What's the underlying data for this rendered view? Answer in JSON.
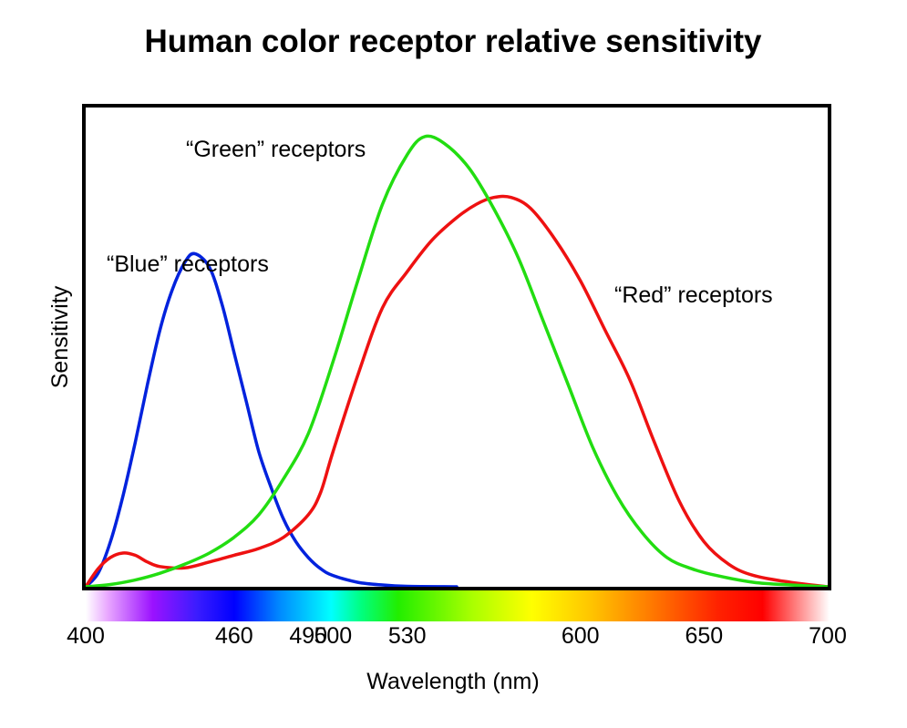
{
  "chart_data": {
    "type": "line",
    "title": "Human color receptor relative sensitivity",
    "xlabel": "Wavelength (nm)",
    "ylabel": "Sensitivity",
    "xlim": [
      400,
      700
    ],
    "ylim": [
      0,
      1.0
    ],
    "x_ticks": [
      "400",
      "460",
      "490",
      "500",
      "530",
      "600",
      "650",
      "700"
    ],
    "grid": false,
    "legend": "none",
    "series": [
      {
        "name": "“Blue” receptors",
        "color": "#0022dd",
        "points": [
          [
            400,
            0
          ],
          [
            405,
            0.03
          ],
          [
            410,
            0.1
          ],
          [
            415,
            0.2
          ],
          [
            420,
            0.32
          ],
          [
            425,
            0.45
          ],
          [
            430,
            0.57
          ],
          [
            435,
            0.66
          ],
          [
            440,
            0.72
          ],
          [
            444,
            0.74
          ],
          [
            450,
            0.71
          ],
          [
            455,
            0.63
          ],
          [
            460,
            0.52
          ],
          [
            465,
            0.41
          ],
          [
            470,
            0.3
          ],
          [
            475,
            0.22
          ],
          [
            480,
            0.15
          ],
          [
            485,
            0.1
          ],
          [
            490,
            0.065
          ],
          [
            495,
            0.04
          ],
          [
            500,
            0.025
          ],
          [
            510,
            0.01
          ],
          [
            520,
            0.004
          ],
          [
            530,
            0.001
          ],
          [
            550,
            0
          ]
        ]
      },
      {
        "name": "“Green” receptors",
        "color": "#22dd11",
        "points": [
          [
            400,
            0
          ],
          [
            410,
            0.005
          ],
          [
            420,
            0.015
          ],
          [
            430,
            0.03
          ],
          [
            440,
            0.05
          ],
          [
            450,
            0.075
          ],
          [
            460,
            0.11
          ],
          [
            470,
            0.16
          ],
          [
            480,
            0.24
          ],
          [
            490,
            0.34
          ],
          [
            500,
            0.5
          ],
          [
            510,
            0.68
          ],
          [
            520,
            0.85
          ],
          [
            530,
            0.96
          ],
          [
            537,
            1.0
          ],
          [
            545,
            0.985
          ],
          [
            555,
            0.93
          ],
          [
            565,
            0.84
          ],
          [
            575,
            0.73
          ],
          [
            585,
            0.59
          ],
          [
            595,
            0.45
          ],
          [
            605,
            0.31
          ],
          [
            615,
            0.2
          ],
          [
            625,
            0.12
          ],
          [
            635,
            0.065
          ],
          [
            645,
            0.04
          ],
          [
            655,
            0.025
          ],
          [
            670,
            0.01
          ],
          [
            685,
            0.004
          ],
          [
            700,
            0
          ]
        ]
      },
      {
        "name": "“Red” receptors",
        "color": "#ee1111",
        "points": [
          [
            400,
            0
          ],
          [
            405,
            0.04
          ],
          [
            410,
            0.065
          ],
          [
            415,
            0.075
          ],
          [
            420,
            0.07
          ],
          [
            425,
            0.055
          ],
          [
            430,
            0.045
          ],
          [
            440,
            0.042
          ],
          [
            450,
            0.055
          ],
          [
            460,
            0.07
          ],
          [
            470,
            0.085
          ],
          [
            480,
            0.11
          ],
          [
            490,
            0.16
          ],
          [
            495,
            0.21
          ],
          [
            500,
            0.3
          ],
          [
            510,
            0.47
          ],
          [
            520,
            0.62
          ],
          [
            530,
            0.7
          ],
          [
            540,
            0.77
          ],
          [
            550,
            0.82
          ],
          [
            558,
            0.85
          ],
          [
            565,
            0.865
          ],
          [
            572,
            0.865
          ],
          [
            580,
            0.84
          ],
          [
            590,
            0.77
          ],
          [
            600,
            0.68
          ],
          [
            610,
            0.57
          ],
          [
            620,
            0.46
          ],
          [
            630,
            0.32
          ],
          [
            640,
            0.19
          ],
          [
            650,
            0.1
          ],
          [
            660,
            0.05
          ],
          [
            670,
            0.025
          ],
          [
            685,
            0.01
          ],
          [
            700,
            0
          ]
        ]
      }
    ],
    "annotations": [
      {
        "text": "“Green” receptors"
      },
      {
        "text": "“Blue” receptors"
      },
      {
        "text": "“Red” receptors"
      }
    ]
  }
}
